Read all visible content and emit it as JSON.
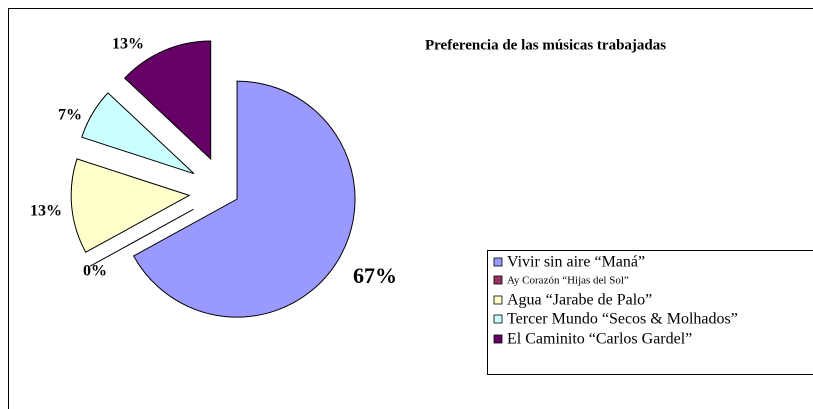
{
  "chart_data": {
    "type": "pie",
    "title": "Preferencia de las músicas trabajadas",
    "categories": [
      "Vivir sin aire “Maná”",
      "Ay Corazón “Hijas del Sol”",
      "Agua “Jarabe de Palo”",
      "Tercer Mundo “Secos & Molhados”",
      "El Caminito “Carlos Gardel”"
    ],
    "values": [
      67,
      0,
      13,
      7,
      13
    ],
    "value_labels": [
      "67%",
      "0%",
      "13%",
      "7%",
      "13%"
    ],
    "colors": [
      "#9999ff",
      "#993366",
      "#ffffcc",
      "#ccffff",
      "#660066"
    ],
    "legend": "right"
  }
}
